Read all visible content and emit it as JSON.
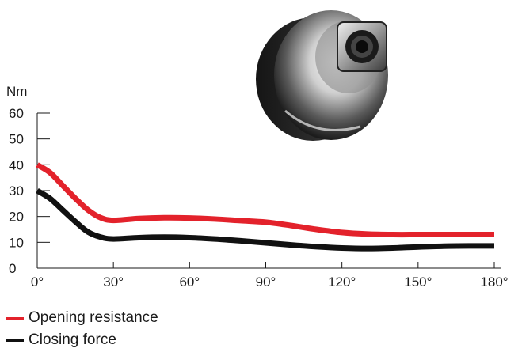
{
  "chart_data": {
    "type": "line",
    "ylabel": "Nm",
    "x_ticks": [
      "0°",
      "30°",
      "60°",
      "90°",
      "120°",
      "150°",
      "180°"
    ],
    "y_ticks": [
      "0",
      "10",
      "20",
      "30",
      "40",
      "50",
      "60"
    ],
    "xlim": [
      0,
      180
    ],
    "ylim": [
      0,
      60
    ],
    "grid": false,
    "legend_position": "bottom-left",
    "series": [
      {
        "name": "Opening resistance",
        "color": "#e3222b",
        "x": [
          0,
          5,
          10,
          15,
          20,
          25,
          30,
          40,
          50,
          60,
          70,
          80,
          90,
          100,
          110,
          120,
          130,
          140,
          150,
          160,
          170,
          180
        ],
        "y": [
          40,
          37,
          32,
          27,
          22.5,
          19.5,
          18.5,
          19.2,
          19.5,
          19.4,
          19,
          18.4,
          17.8,
          16.5,
          15,
          13.8,
          13.2,
          13,
          13,
          13,
          13,
          13
        ]
      },
      {
        "name": "Closing force",
        "color": "#111111",
        "x": [
          0,
          5,
          10,
          15,
          20,
          25,
          30,
          40,
          50,
          60,
          70,
          80,
          90,
          100,
          110,
          120,
          130,
          140,
          150,
          160,
          170,
          180
        ],
        "y": [
          30,
          27,
          22.5,
          18,
          14,
          12,
          11.3,
          11.8,
          12,
          11.8,
          11.3,
          10.6,
          9.8,
          9,
          8.3,
          7.8,
          7.6,
          7.8,
          8.2,
          8.5,
          8.6,
          8.6
        ]
      }
    ]
  },
  "product_image": {
    "icon": "hinge-cam-photo"
  }
}
